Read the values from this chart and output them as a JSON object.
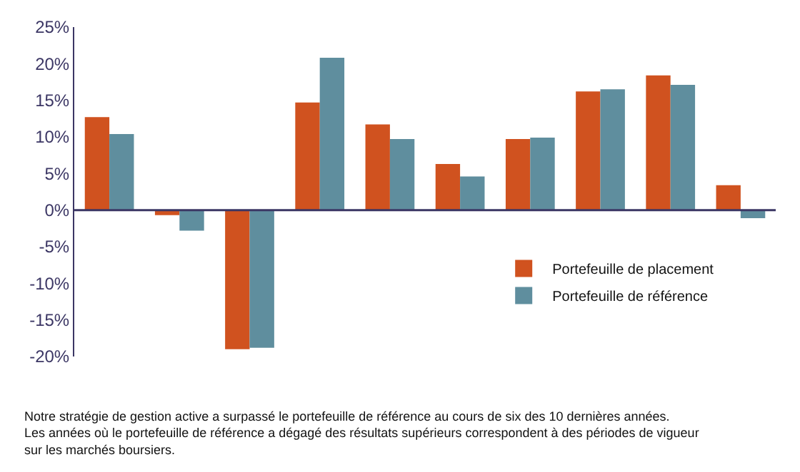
{
  "chart_data": {
    "type": "bar",
    "categories": [
      null,
      null,
      null,
      null,
      null,
      null,
      null,
      null,
      null,
      null
    ],
    "series": [
      {
        "name": "Portefeuille de placement",
        "color": "#d0521f",
        "values": [
          12.7,
          -0.7,
          -19.0,
          14.7,
          11.7,
          6.3,
          9.7,
          16.2,
          18.4,
          3.4
        ]
      },
      {
        "name": "Portefeuille de référence",
        "color": "#5f8e9e",
        "values": [
          10.4,
          -2.8,
          -18.8,
          20.8,
          9.7,
          4.6,
          9.9,
          16.5,
          17.1,
          -1.1
        ]
      }
    ],
    "ylim": [
      -20,
      25
    ],
    "yticks": [
      {
        "value": -20,
        "label": "-20%"
      },
      {
        "value": -15,
        "label": "-15%"
      },
      {
        "value": -10,
        "label": "-10%"
      },
      {
        "value": -5,
        "label": "-5%"
      },
      {
        "value": 0,
        "label": "0%"
      },
      {
        "value": 5,
        "label": "5%"
      },
      {
        "value": 10,
        "label": "10%"
      },
      {
        "value": 15,
        "label": "15%"
      },
      {
        "value": 20,
        "label": "20%"
      },
      {
        "value": 25,
        "label": "25%"
      }
    ],
    "tick_labels": "y",
    "ref_lines": [
      {
        "axis": "y",
        "value": 0,
        "color": "#3b3664"
      }
    ],
    "legend": "bottom right",
    "annotations": [
      "Notre stratégie de gestion active a surpassé le portefeuille de référence au cours de six des 10 dernières années.\nLes années où le portefeuille de référence a dégagé des résultats supérieurs correspondent à des périodes de vigueur\nsur les marchés boursiers."
    ]
  }
}
